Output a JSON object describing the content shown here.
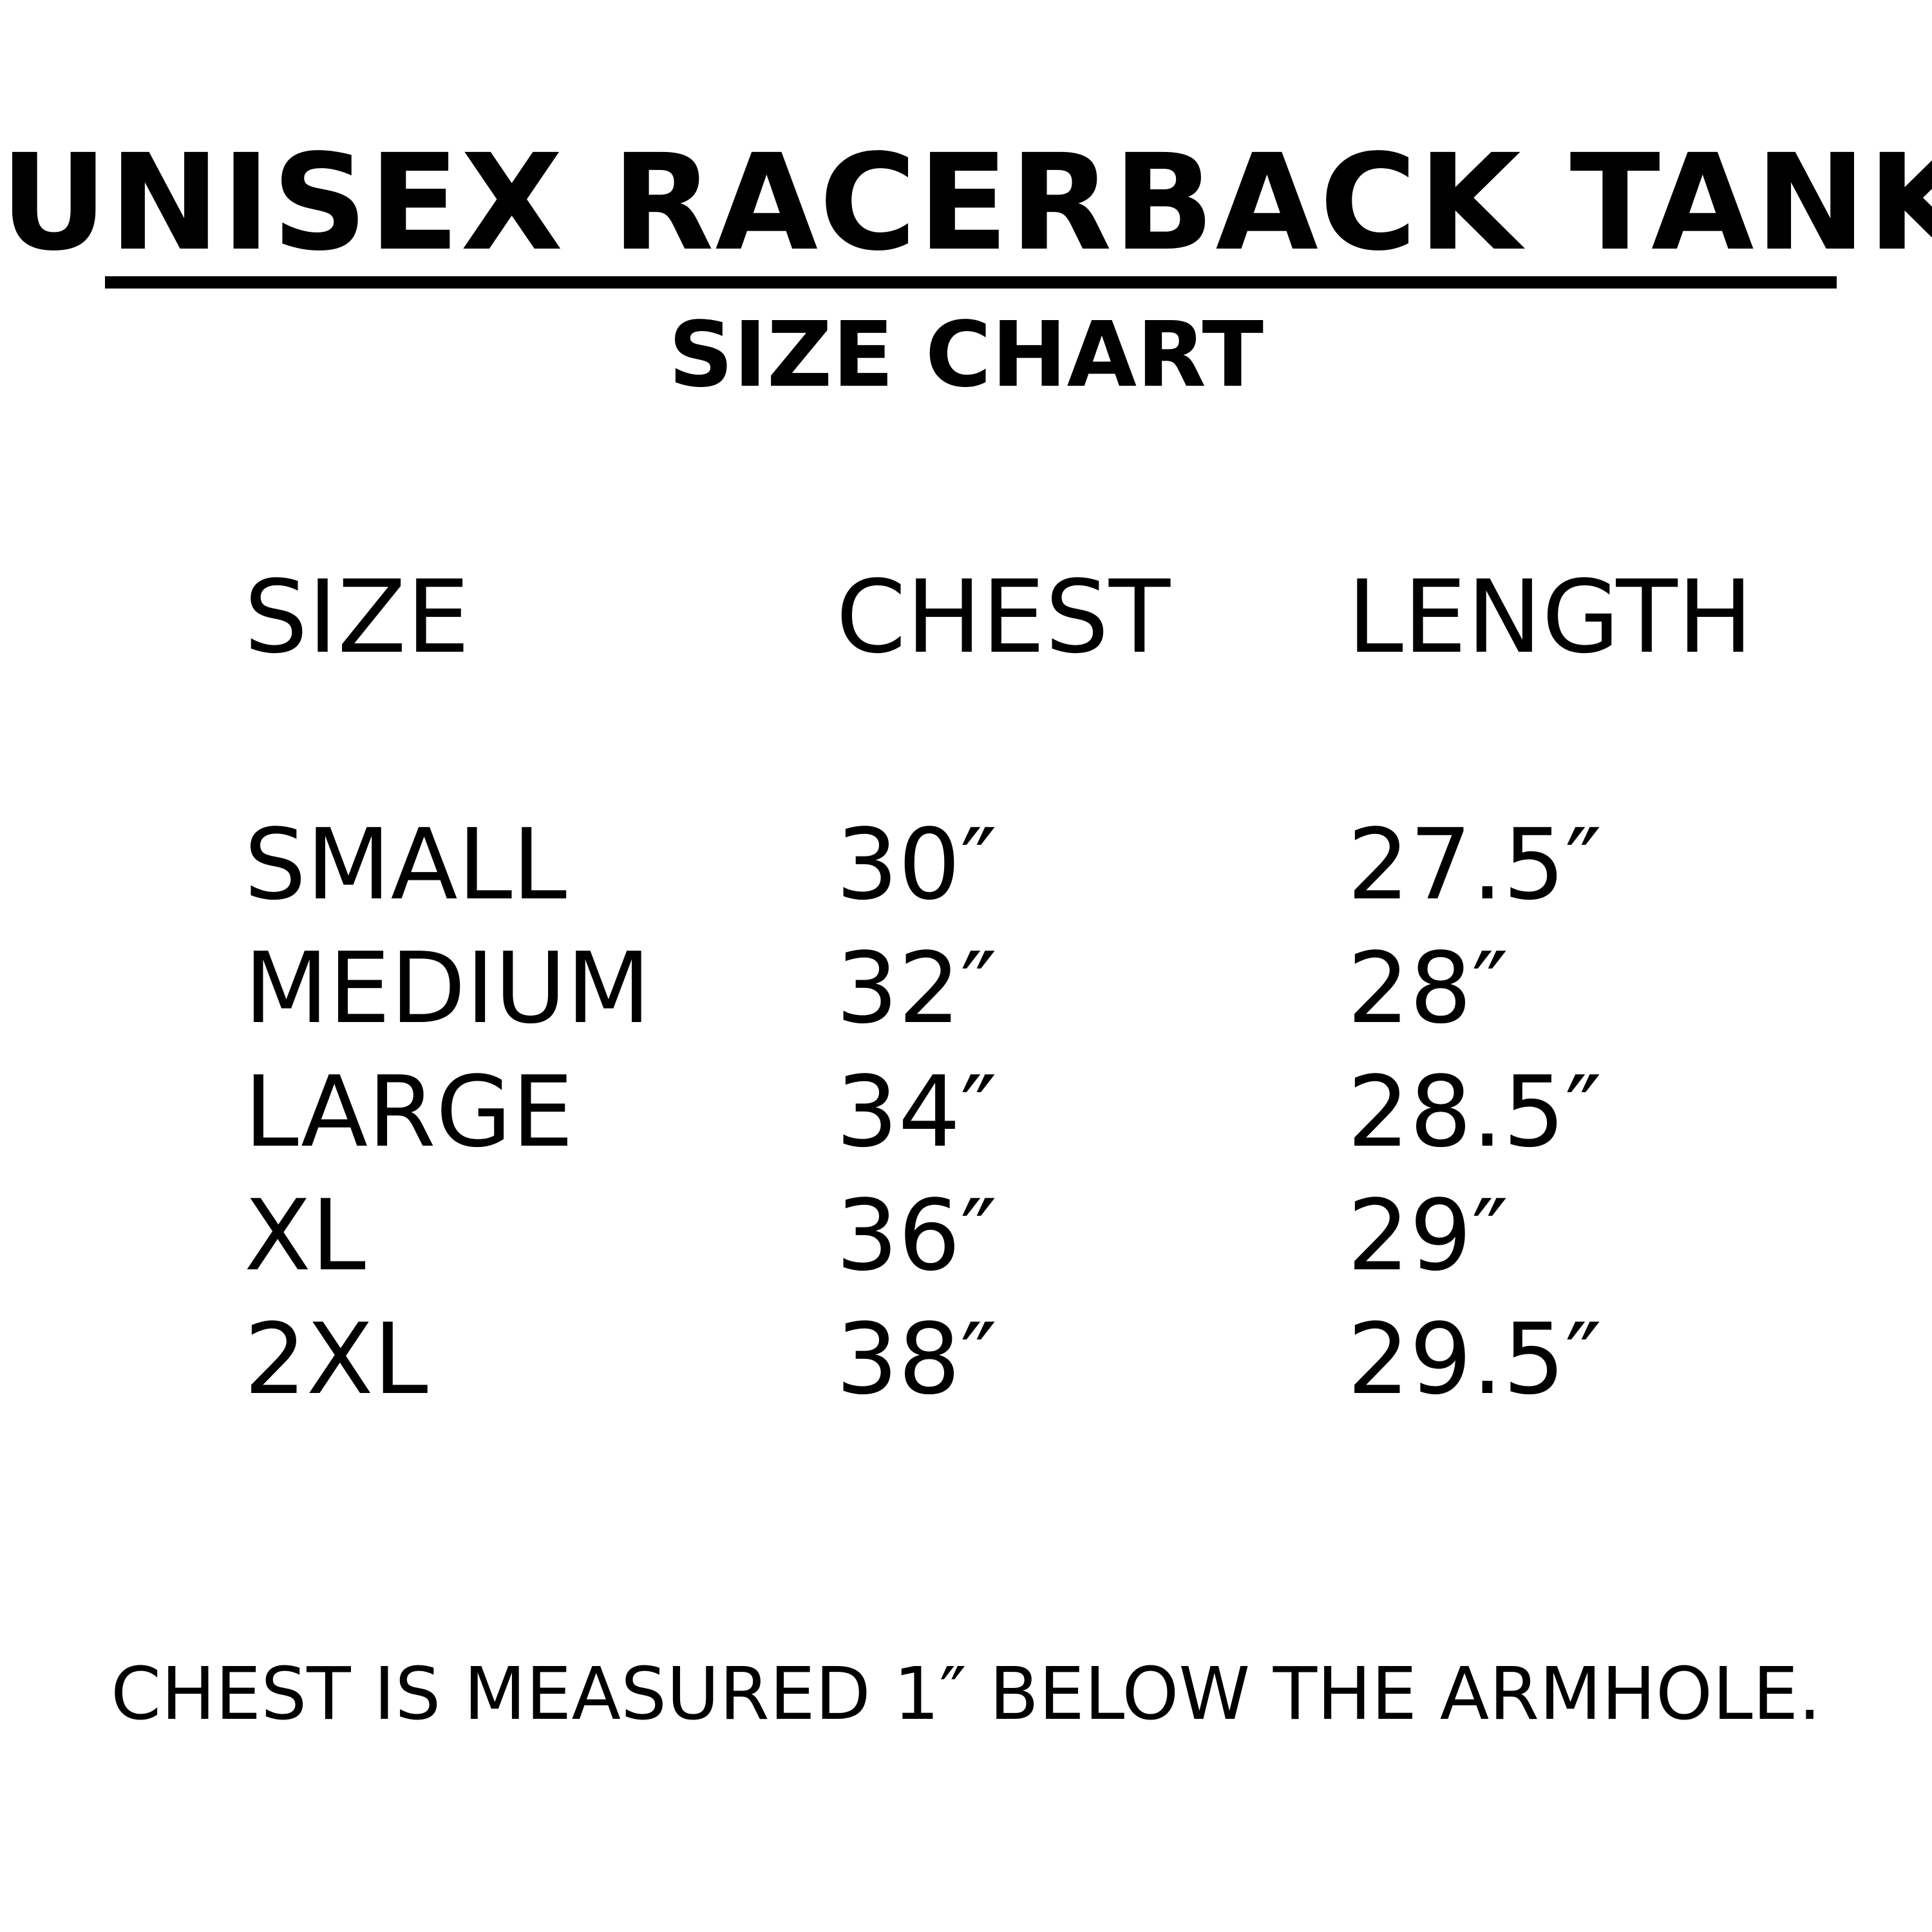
{
  "title": "UNISEX RACERBACK TANK",
  "subtitle": "SIZE CHART",
  "table": {
    "headers": [
      "SIZE",
      "CHEST",
      "LENGTH"
    ],
    "rows": [
      [
        "SMALL",
        "30″",
        "27.5″"
      ],
      [
        "MEDIUM",
        "32″",
        "28″"
      ],
      [
        "LARGE",
        "34″",
        "28.5″"
      ],
      [
        "XL",
        "36″",
        "29″"
      ],
      [
        "2XL",
        "38″",
        "29.5″"
      ]
    ]
  },
  "footer_note": "CHEST IS MEASURED 1″ BELOW THE ARMHOLE."
}
